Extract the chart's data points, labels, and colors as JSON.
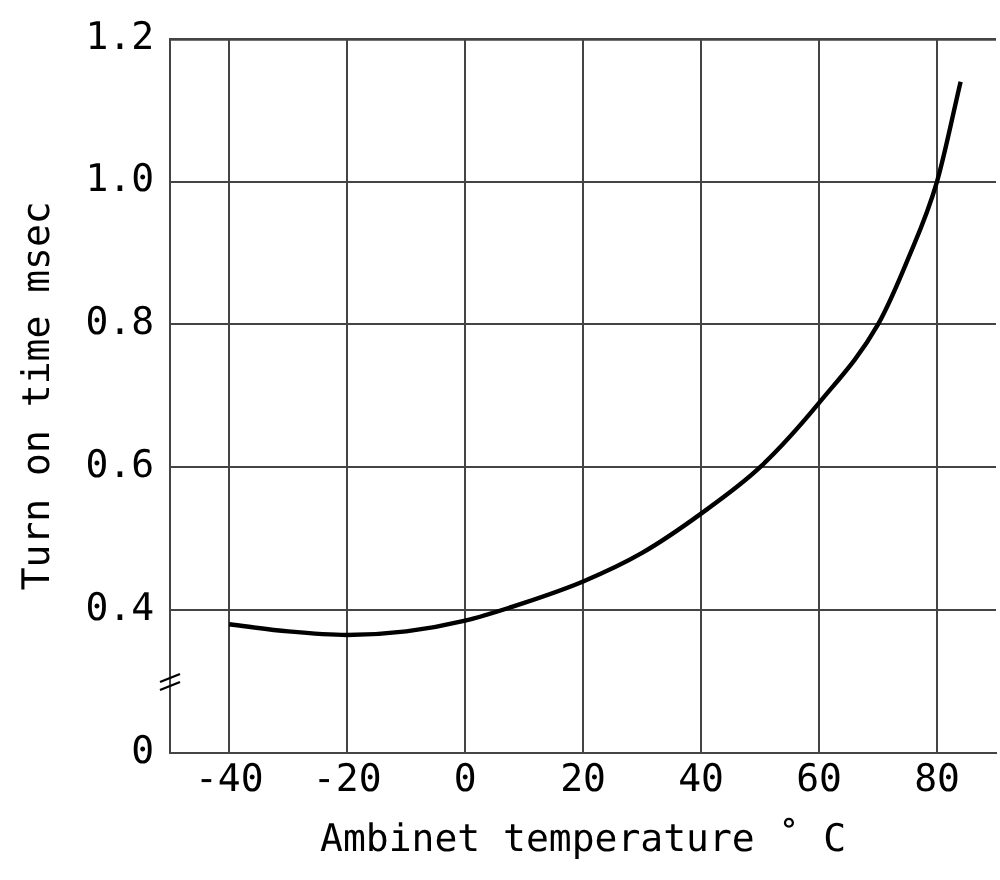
{
  "chart_data": {
    "type": "line",
    "xlabel": "Ambinet temperature ˚ C",
    "ylabel": "Turn on time msec",
    "x": [
      -40,
      -30,
      -20,
      -10,
      0,
      10,
      20,
      30,
      40,
      50,
      60,
      70,
      75,
      80,
      84
    ],
    "series": [
      {
        "color": "#000000",
        "values": [
          0.38,
          0.37,
          0.365,
          0.37,
          0.385,
          0.41,
          0.44,
          0.48,
          0.535,
          0.6,
          0.69,
          0.8,
          0.89,
          1.0,
          1.14
        ]
      }
    ],
    "xlim": [
      -50,
      90
    ],
    "xticks": [
      -40,
      -20,
      0,
      20,
      40,
      60,
      80
    ],
    "ylim": [
      0.2,
      1.2
    ],
    "yticks": [
      {
        "value": 0.2,
        "label": "0"
      },
      {
        "value": 0.4,
        "label": "0.4"
      },
      {
        "value": 0.6,
        "label": "0.6"
      },
      {
        "value": 0.8,
        "label": "0.8"
      },
      {
        "value": 1.0,
        "label": "1.0"
      },
      {
        "value": 1.2,
        "label": "1.2"
      }
    ],
    "grid": true,
    "legend": false,
    "marker": "none",
    "line_style": "solid"
  }
}
